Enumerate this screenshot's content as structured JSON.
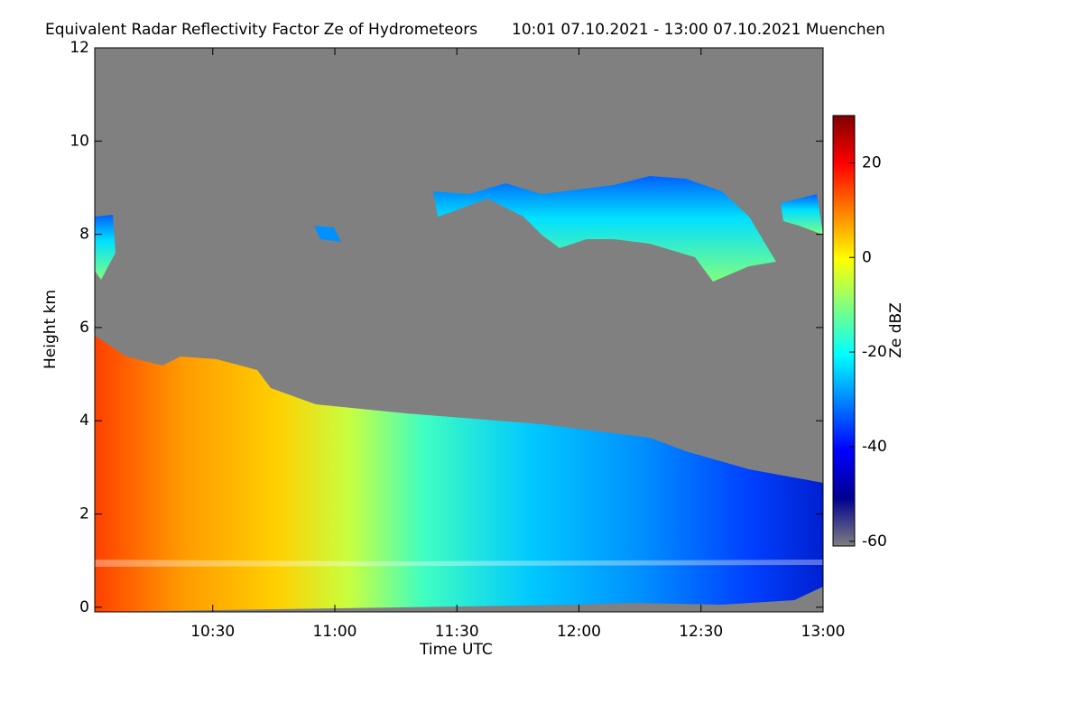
{
  "chart_data": {
    "type": "heatmap",
    "title": "Equivalent Radar Reflectivity Factor Ze of Hydrometeors",
    "subtitle": "10:01 07.10.2021 - 13:00 07.10.2021 Muenchen",
    "x_label": "Time UTC",
    "y_label": "Height km",
    "colorbar_label": "Ze dBZ",
    "xlim": [
      601,
      780
    ],
    "xticks": [
      {
        "value": 630,
        "label": "10:30"
      },
      {
        "value": 660,
        "label": "11:00"
      },
      {
        "value": 690,
        "label": "11:30"
      },
      {
        "value": 720,
        "label": "12:00"
      },
      {
        "value": 750,
        "label": "12:30"
      },
      {
        "value": 780,
        "label": "13:00"
      }
    ],
    "ylim": [
      -0.1,
      12
    ],
    "yticks": [
      0,
      2,
      4,
      6,
      8,
      10,
      12
    ],
    "zlim": [
      -61,
      30
    ],
    "zticks": [
      20,
      0,
      -20,
      -40,
      -60
    ],
    "colormap": [
      "#7f7f7f",
      "#000090",
      "#0000ff",
      "#0080ff",
      "#00ffff",
      "#80ff80",
      "#ffff00",
      "#ff8000",
      "#ff0000",
      "#800000"
    ]
  }
}
